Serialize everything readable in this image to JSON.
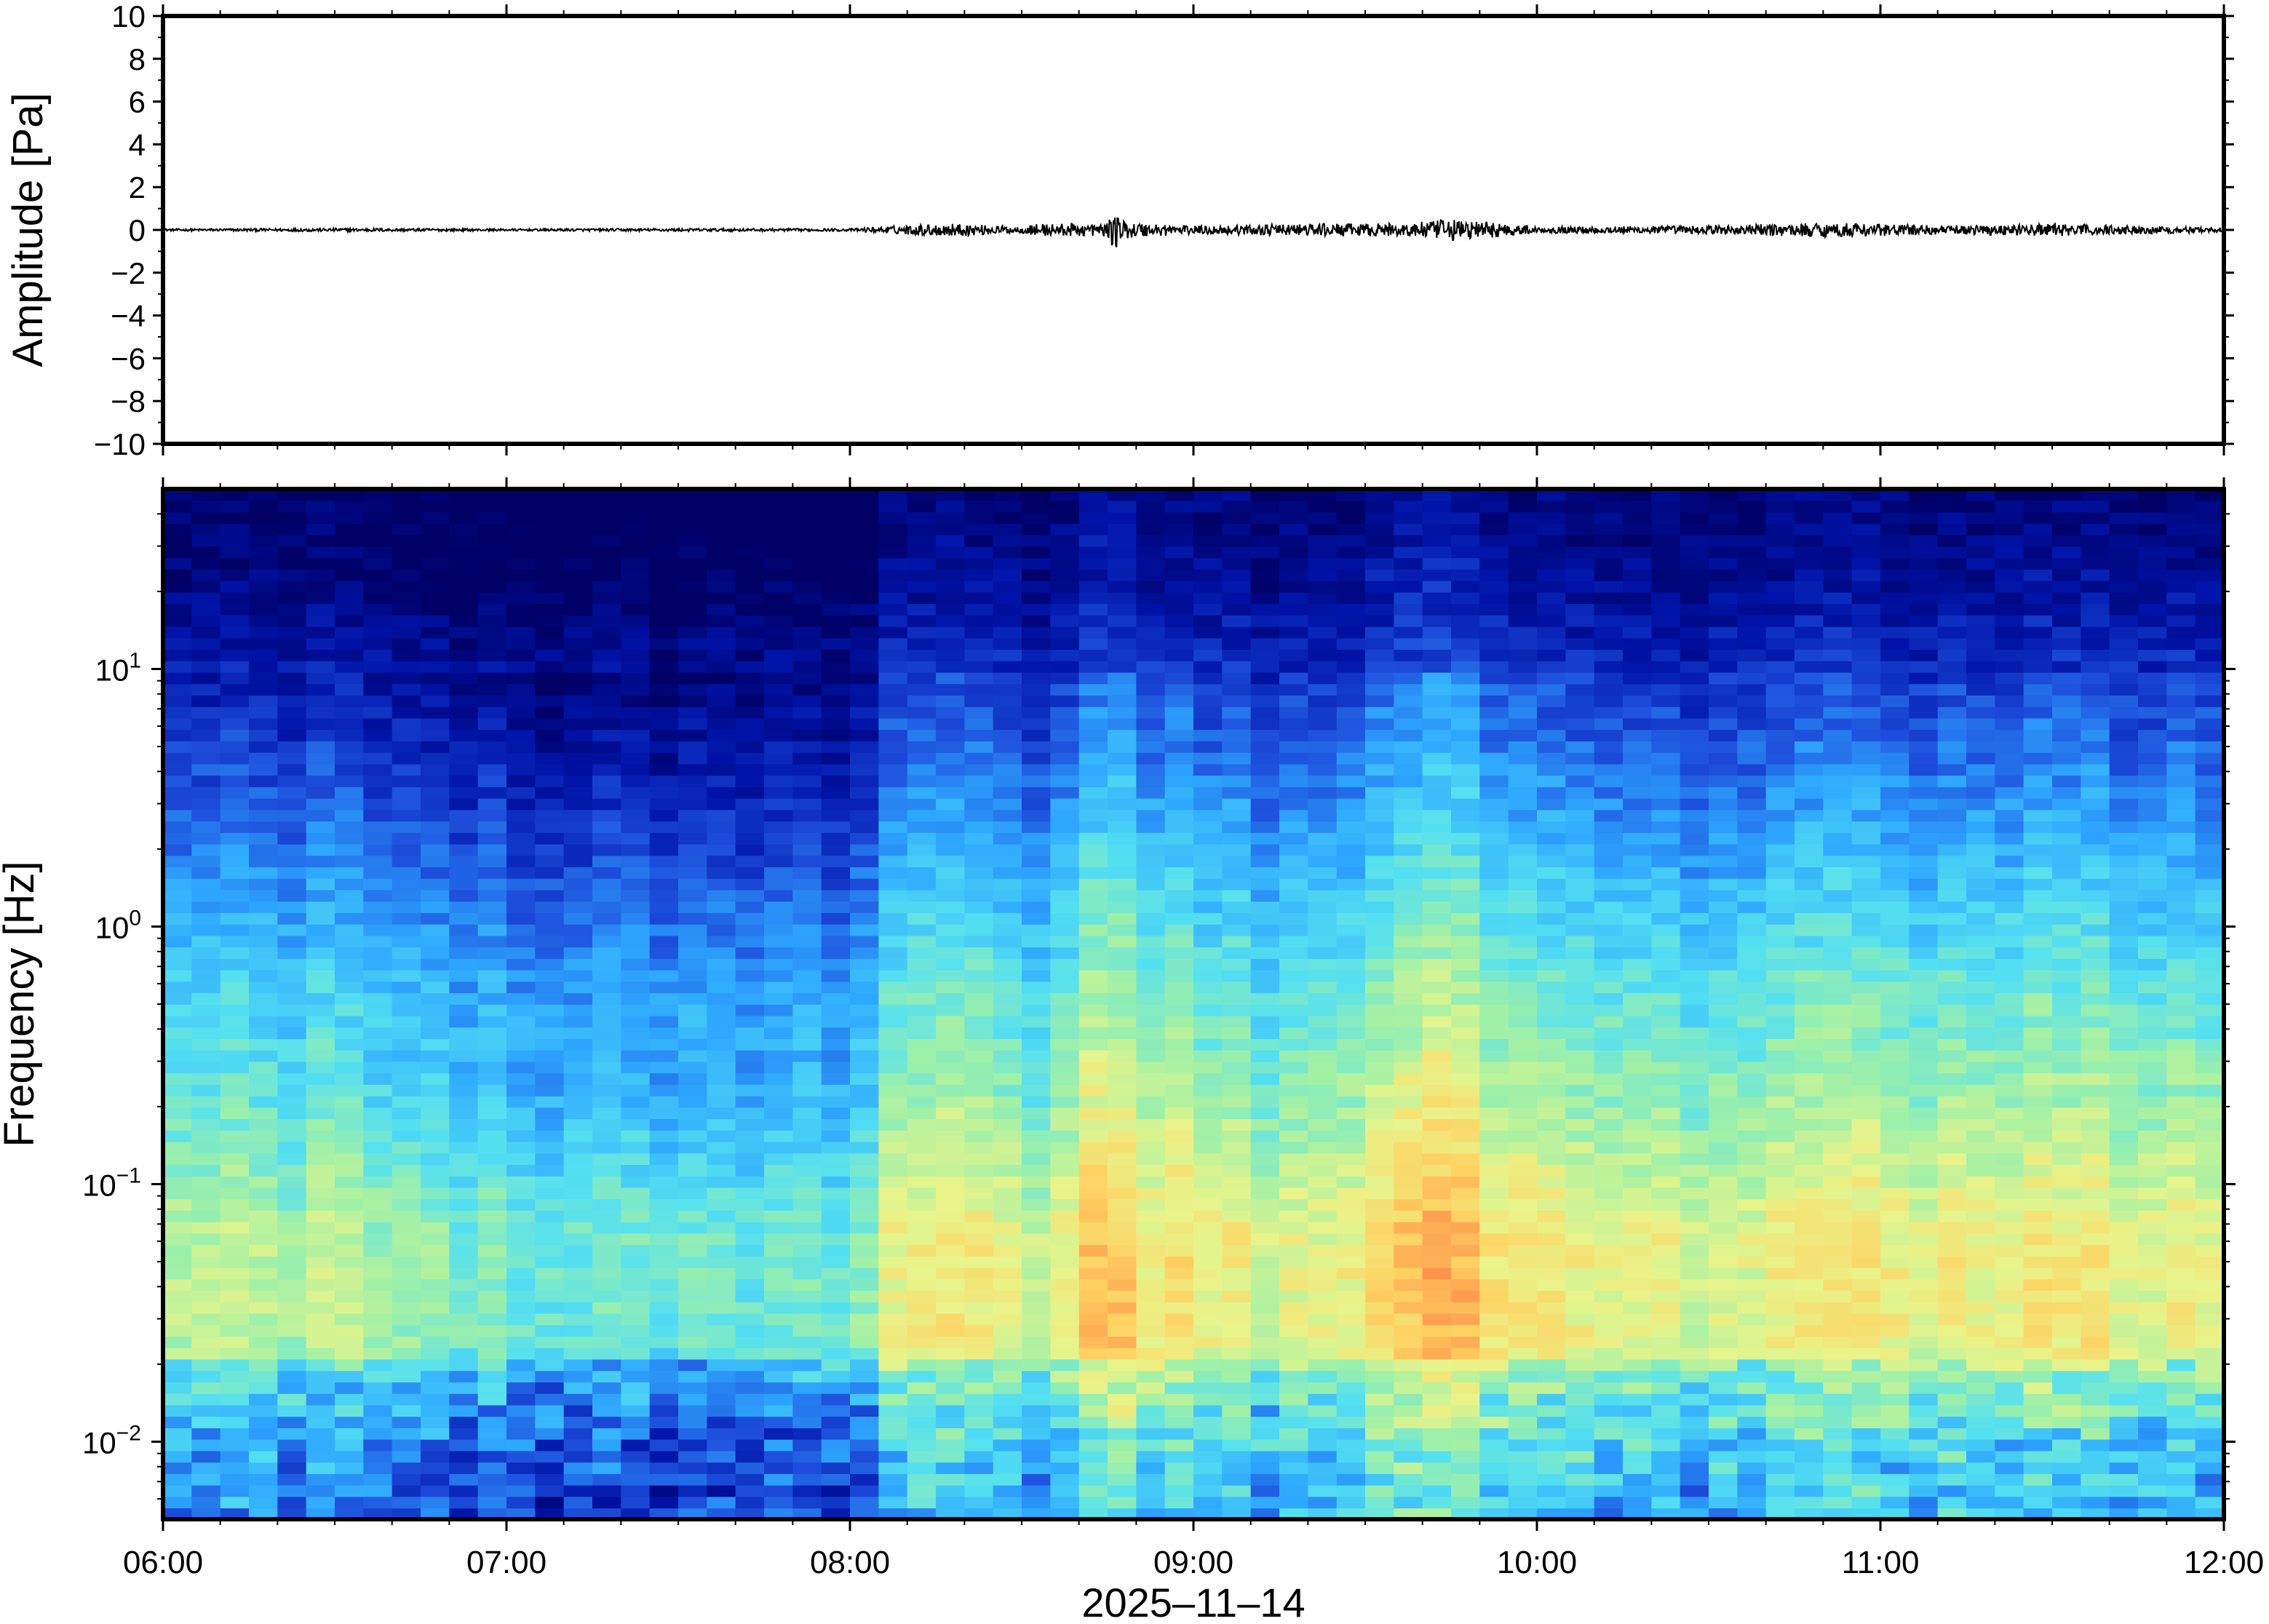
{
  "chart_data": [
    {
      "type": "line",
      "ylabel": "Amplitude [Pa]",
      "ylim": [
        -10,
        10
      ],
      "yticks": [
        {
          "value": 10,
          "label": "10"
        },
        {
          "value": 8,
          "label": "8"
        },
        {
          "value": 6,
          "label": "6"
        },
        {
          "value": 4,
          "label": "4"
        },
        {
          "value": 2,
          "label": "2"
        },
        {
          "value": 0,
          "label": "0"
        },
        {
          "value": -2,
          "label": "−2"
        },
        {
          "value": -4,
          "label": "−4"
        },
        {
          "value": -6,
          "label": "−6"
        },
        {
          "value": -8,
          "label": "−8"
        },
        {
          "value": -10,
          "label": "−10"
        }
      ],
      "xlim_hours": [
        6,
        12
      ],
      "line_color": "#000000",
      "series": [
        {
          "envelope_x_hours": [
            6.0,
            6.5,
            7.0,
            7.5,
            8.0,
            8.2,
            8.3,
            8.5,
            8.55,
            8.75,
            8.77,
            8.8,
            8.9,
            9.0,
            9.4,
            9.6,
            9.75,
            9.85,
            10.0,
            10.5,
            10.85,
            11.2,
            11.5,
            12.0
          ],
          "envelope_pa": [
            0.05,
            0.08,
            0.05,
            0.07,
            0.06,
            0.25,
            0.3,
            0.15,
            0.3,
            0.3,
            1.0,
            0.4,
            0.3,
            0.2,
            0.3,
            0.3,
            0.5,
            0.4,
            0.15,
            0.2,
            0.35,
            0.2,
            0.3,
            0.1
          ]
        }
      ]
    },
    {
      "type": "heatmap",
      "ylabel": "Frequency [Hz]",
      "xlabel": "2025–11–14",
      "yscale": "log",
      "ylim": [
        0.005,
        50
      ],
      "ytick_labels": [
        {
          "value": 10,
          "base": "10",
          "exp": "1"
        },
        {
          "value": 1,
          "base": "10",
          "exp": "0"
        },
        {
          "value": 0.1,
          "base": "10",
          "exp": "−1"
        },
        {
          "value": 0.01,
          "base": "10",
          "exp": "−2"
        }
      ],
      "xlim_hours": [
        6,
        12
      ],
      "xticks": [
        {
          "value": 6,
          "label": "06:00"
        },
        {
          "value": 7,
          "label": "07:00"
        },
        {
          "value": 8,
          "label": "08:00"
        },
        {
          "value": 9,
          "label": "09:00"
        },
        {
          "value": 10,
          "label": "10:00"
        },
        {
          "value": 11,
          "label": "11:00"
        },
        {
          "value": 12,
          "label": "12:00"
        }
      ],
      "colormap": [
        "#000066",
        "#0014a8",
        "#1e50dc",
        "#2ea8ff",
        "#55e0f0",
        "#9ef0a8",
        "#e8f48a",
        "#ffd060",
        "#ff8a4a",
        "#e03c28"
      ],
      "activity_hours": [
        6.0,
        6.5,
        7.0,
        7.5,
        8.0,
        8.15,
        8.3,
        8.5,
        8.6,
        8.75,
        8.85,
        9.0,
        9.2,
        9.5,
        9.75,
        9.9,
        10.2,
        10.5,
        10.8,
        11.0,
        11.3,
        11.5,
        12.0
      ],
      "activity_level": [
        0.35,
        0.35,
        0.2,
        0.15,
        0.2,
        0.55,
        0.55,
        0.45,
        0.4,
        0.85,
        0.6,
        0.55,
        0.45,
        0.55,
        0.8,
        0.6,
        0.5,
        0.45,
        0.6,
        0.5,
        0.5,
        0.55,
        0.45
      ]
    }
  ]
}
